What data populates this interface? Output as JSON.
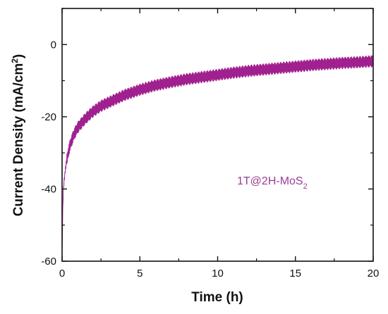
{
  "chart_data": {
    "type": "line",
    "title": "",
    "xlabel": "Time (h)",
    "ylabel_main": "Current Density (mA/cm",
    "ylabel_sup": "2",
    "ylabel_close": ")",
    "xlim": [
      0,
      20
    ],
    "ylim": [
      -60,
      10
    ],
    "xticks": [
      0,
      5,
      10,
      15,
      20
    ],
    "yticks": [
      -60,
      -40,
      -20,
      0
    ],
    "grid": false,
    "annotation": {
      "text_main": "1T@2H-MoS",
      "text_sub": "2",
      "color": "#9b3d97"
    },
    "series": [
      {
        "color": "#a0208f",
        "x": [
          0,
          0.05,
          0.1,
          0.2,
          0.3,
          0.5,
          0.75,
          1,
          1.5,
          2,
          2.5,
          3,
          4,
          5,
          6,
          7,
          8,
          9,
          10,
          11,
          12,
          13,
          14,
          15,
          16,
          17,
          18,
          19,
          20
        ],
        "y": [
          -58,
          -44,
          -39,
          -35,
          -32,
          -28,
          -25,
          -23,
          -20.5,
          -18.5,
          -17,
          -16,
          -14,
          -12.5,
          -11.3,
          -10.4,
          -9.6,
          -9,
          -8.4,
          -7.8,
          -7.3,
          -6.9,
          -6.5,
          -6.1,
          -5.7,
          -5.4,
          -5.1,
          -4.9,
          -4.6
        ]
      }
    ],
    "noise_amplitude": 1.6
  }
}
